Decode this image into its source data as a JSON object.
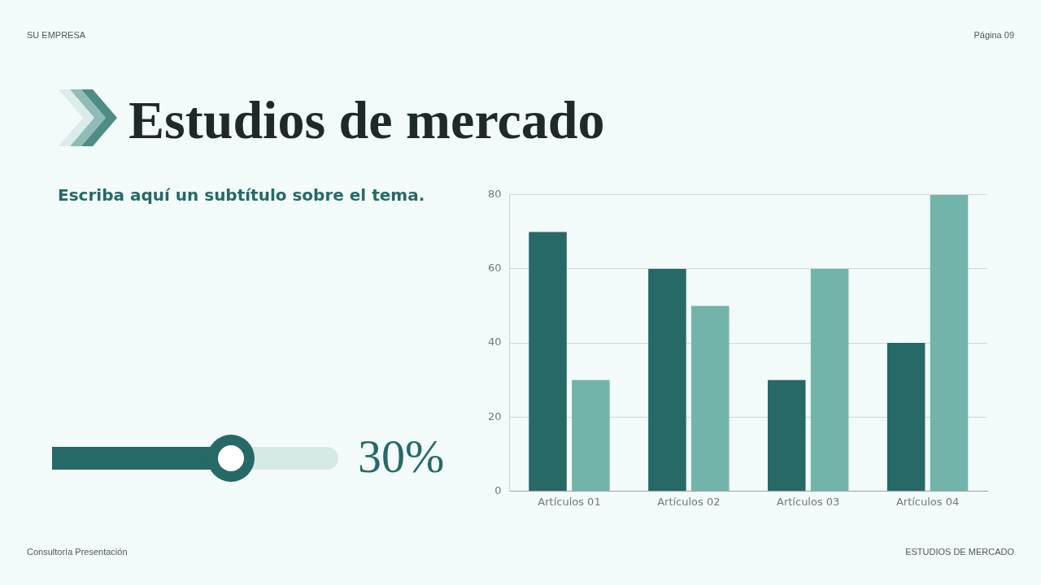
{
  "chart_data": {
    "type": "bar",
    "title": "Estudios de mercado",
    "subtitle": "Escriba aquí un subtítulo sobre el tema.",
    "annotations": [
      "SU EMPRESA",
      "Página 09",
      "30%",
      "Consultoría Presentación",
      "ESTUDIOS DE MERCADO"
    ],
    "categories": [
      "Artículos 01",
      "Artículos 02",
      "Artículos 03",
      "Artículos 04"
    ],
    "series": [
      {
        "color": "#266966",
        "values": [
          70,
          60,
          30,
          40
        ]
      },
      {
        "color": "#72b4aa",
        "values": [
          30,
          50,
          60,
          80
        ]
      }
    ],
    "ylim": [
      0,
      80
    ],
    "yticks": [
      0,
      20,
      40,
      60,
      80
    ],
    "grid": "y",
    "legend": false
  }
}
